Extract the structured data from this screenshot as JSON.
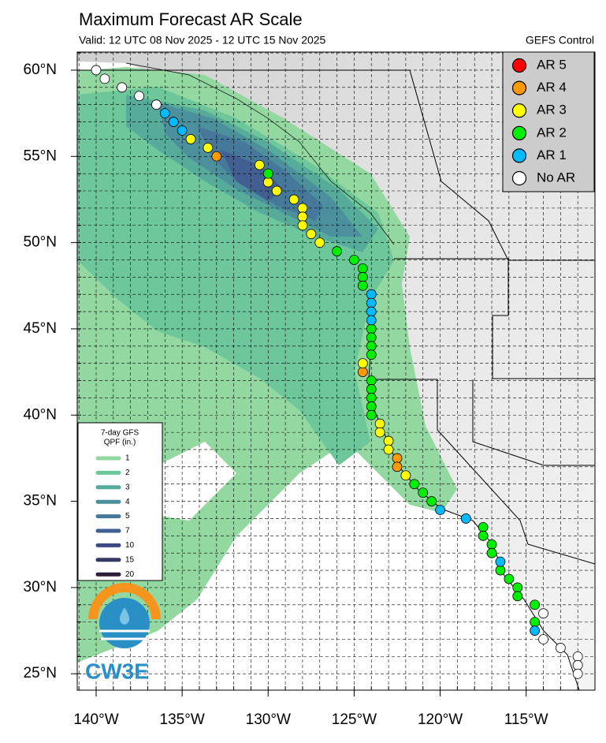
{
  "chart_data": {
    "type": "map-points",
    "title": "Maximum Forecast AR Scale",
    "subtitle": "Valid: 12 UTC 08 Nov 2025 - 12 UTC 15 Nov 2025",
    "model": "GEFS Control",
    "logo_text": "CW3E",
    "xlim": [
      -141.1,
      -111.0
    ],
    "ylim": [
      24.05,
      61.05
    ],
    "grid": true,
    "grid_spacing": 1,
    "legend_position": "upper right",
    "xticks": [
      {
        "value": -140,
        "label": "140°W"
      },
      {
        "value": -135,
        "label": "135°W"
      },
      {
        "value": -130,
        "label": "130°W"
      },
      {
        "value": -125,
        "label": "125°W"
      },
      {
        "value": -120,
        "label": "120°W"
      },
      {
        "value": -115,
        "label": "115°W"
      }
    ],
    "yticks": [
      {
        "value": 25,
        "label": "25°N"
      },
      {
        "value": 30,
        "label": "30°N"
      },
      {
        "value": 35,
        "label": "35°N"
      },
      {
        "value": 40,
        "label": "40°N"
      },
      {
        "value": 45,
        "label": "45°N"
      },
      {
        "value": 50,
        "label": "50°N"
      },
      {
        "value": 55,
        "label": "55°N"
      },
      {
        "value": 60,
        "label": "60°N"
      }
    ],
    "series": [
      {
        "name": "AR 5",
        "color": "#ff0000",
        "x": [],
        "y": []
      },
      {
        "name": "AR 4",
        "color": "#ff9900",
        "x": [
          -133.0,
          -124.5,
          -122.5,
          -122.5
        ],
        "y": [
          55.0,
          42.5,
          37.5,
          37.0
        ]
      },
      {
        "name": "AR 3",
        "color": "#ffff00",
        "x": [
          -134.5,
          -133.5,
          -130.5,
          -130.0,
          -129.5,
          -128.5,
          -128.0,
          -128.0,
          -128.0,
          -127.5,
          -127.0,
          -124.5,
          -123.5,
          -123.5,
          -123.0,
          -123.0,
          -122.0
        ],
        "y": [
          56.0,
          55.5,
          54.5,
          53.5,
          53.0,
          52.5,
          52.0,
          51.5,
          51.0,
          50.5,
          50.0,
          43.0,
          39.5,
          39.0,
          38.5,
          38.0,
          36.5
        ]
      },
      {
        "name": "AR 2",
        "color": "#00ee00",
        "x": [
          -130.0,
          -126.0,
          -125.0,
          -124.5,
          -124.5,
          -124.5,
          -124.0,
          -124.0,
          -124.0,
          -124.0,
          -124.0,
          -124.0,
          -124.0,
          -124.0,
          -124.0,
          -121.5,
          -121.0,
          -120.5,
          -117.5,
          -117.5,
          -117.0,
          -117.0,
          -116.5,
          -116.0,
          -115.5,
          -115.5,
          -114.5,
          -114.5
        ],
        "y": [
          54.0,
          49.5,
          49.0,
          48.5,
          48.0,
          47.5,
          45.0,
          44.5,
          44.0,
          43.5,
          42.0,
          41.5,
          41.0,
          40.5,
          40.0,
          36.0,
          35.5,
          35.0,
          33.5,
          33.0,
          32.5,
          32.0,
          31.0,
          30.5,
          30.0,
          29.5,
          29.0,
          28.0
        ]
      },
      {
        "name": "AR 1",
        "color": "#00bbff",
        "x": [
          -136.0,
          -135.5,
          -135.0,
          -124.0,
          -124.0,
          -124.0,
          -124.0,
          -120.0,
          -118.5,
          -116.5,
          -114.5
        ],
        "y": [
          57.5,
          57.0,
          56.5,
          47.0,
          46.5,
          46.0,
          45.5,
          34.5,
          34.0,
          31.5,
          27.5
        ]
      },
      {
        "name": "No AR",
        "color": "#ffffff",
        "x": [
          -140.0,
          -139.5,
          -138.5,
          -137.5,
          -136.5,
          -114.0,
          -114.0,
          -113.0,
          -112.0,
          -112.0,
          -112.0
        ],
        "y": [
          60.0,
          59.5,
          59.0,
          58.5,
          58.0,
          28.5,
          27.0,
          26.5,
          26.0,
          25.5,
          25.0
        ]
      }
    ],
    "qpf_legend": {
      "title": [
        "7-day GFS",
        "QPF (in.)"
      ],
      "levels": [
        {
          "label": 1,
          "color": "#93d8a0"
        },
        {
          "label": 2,
          "color": "#6ec79b"
        },
        {
          "label": 3,
          "color": "#57ab9b"
        },
        {
          "label": 4,
          "color": "#4d909d"
        },
        {
          "label": 5,
          "color": "#46789b"
        },
        {
          "label": 7,
          "color": "#415f92"
        },
        {
          "label": 10,
          "color": "#3e4a86"
        },
        {
          "label": 15,
          "color": "#373964"
        },
        {
          "label": 20,
          "color": "#2a1e38"
        }
      ]
    }
  }
}
